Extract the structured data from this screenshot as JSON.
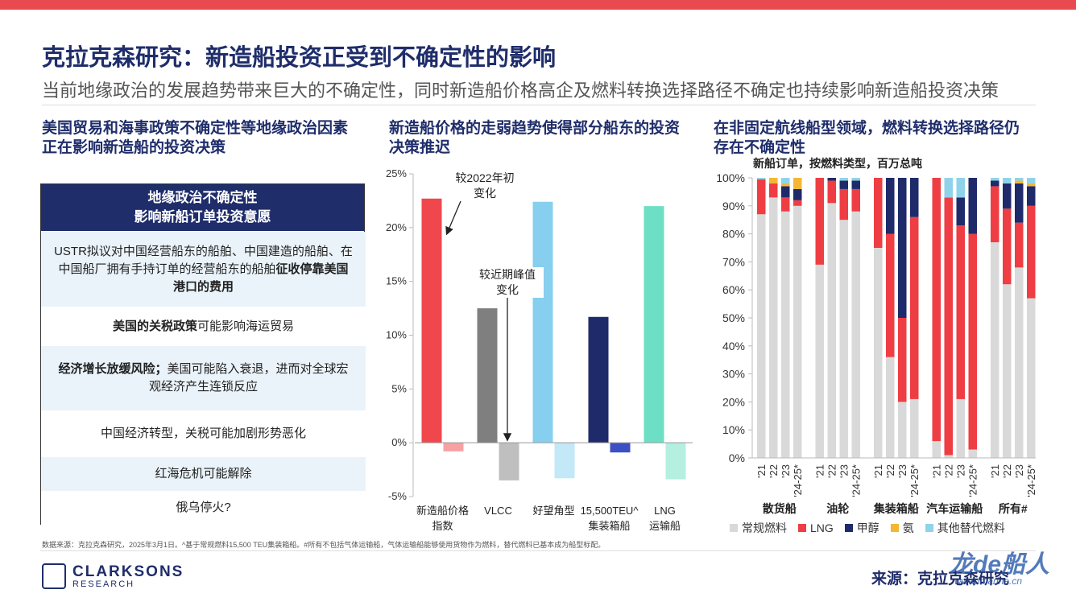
{
  "header": {
    "title": "克拉克森研究：新造船投资正受到不确定性的影响",
    "subtitle": "当前地缘政治的发展趋势带来巨大的不确定性，同时新造船价格高企及燃料转换选择路径不确定也持续影响新造船投资决策"
  },
  "left_panel": {
    "heading": "美国贸易和海事政策不确定性等地缘政治因素正在影响新造船的投资决策",
    "table": {
      "header_lines": [
        "地缘政治不确定性",
        "影响新船订单投资意愿"
      ],
      "rows": [
        {
          "parts": [
            "USTR拟议对中国经营船东的船舶、中国建造的船舶、在中国船厂拥有手持订单的经营船东的船舶",
            "征收停靠美国港口的费用"
          ],
          "bold": [
            false,
            true
          ]
        },
        {
          "parts": [
            "美国的关税政策",
            "可能影响海运贸易"
          ],
          "bold": [
            true,
            false
          ]
        },
        {
          "parts": [
            "经济增长放缓风险；",
            "美国可能陷入衰退，进而对全球宏观经济产生连锁反应"
          ],
          "bold": [
            true,
            false
          ]
        },
        {
          "parts": [
            "中国经济转型，关税可能加剧形势恶化"
          ],
          "bold": [
            false
          ]
        },
        {
          "parts": [
            "红海危机可能解除"
          ],
          "bold": [
            false
          ]
        },
        {
          "parts": [
            "俄乌停火?"
          ],
          "bold": [
            false
          ]
        }
      ]
    }
  },
  "chart_data": [
    {
      "type": "bar",
      "heading": "新造船价格的走弱趋势使得部分船东的投资决策推迟",
      "categories": [
        "新造船价格\n指数",
        "VLCC",
        "好望角型",
        "15,500TEU^\n集装箱船",
        "LNG\n运输船"
      ],
      "series": [
        {
          "name": "较2022年初\n变化",
          "colors": [
            "#f0474c",
            "#7f7f7f",
            "#87cfee",
            "#1f2a6b",
            "#6ddfc4"
          ],
          "values": [
            22.7,
            12.5,
            22.4,
            11.7,
            22.0
          ]
        },
        {
          "name": "较近期峰值\n变化",
          "colors": [
            "#f6a1a3",
            "#bfbfbf",
            "#c3e8f7",
            "#3c4fc4",
            "#b4efe0"
          ],
          "values": [
            -0.8,
            -3.5,
            -3.3,
            -0.9,
            -3.4
          ]
        }
      ],
      "ylim": [
        -5,
        25
      ],
      "yticks": [
        {
          "value": -5,
          "label": "-5%"
        },
        {
          "value": 0,
          "label": "0%"
        },
        {
          "value": 5,
          "label": "5%"
        },
        {
          "value": 10,
          "label": "10%"
        },
        {
          "value": 15,
          "label": "15%"
        },
        {
          "value": 20,
          "label": "20%"
        },
        {
          "value": 25,
          "label": "25%"
        }
      ]
    },
    {
      "type": "stacked_bar",
      "heading": "在非固定航线船型领域，燃料转换选择路径仍存在不确定性",
      "title": "新船订单，按燃料类型，百万总吨",
      "groups": [
        "散货船",
        "油轮",
        "集装箱船",
        "汽车运输船",
        "所有#"
      ],
      "categories": [
        "'21",
        "'22",
        "'23",
        "'24-25*",
        "'21",
        "'22",
        "'23",
        "'24-25*",
        "'21",
        "'22",
        "'23",
        "'24-25*",
        "'21",
        "'22",
        "'23",
        "'24-25*",
        "'21",
        "'22",
        "'23",
        "'24-25*"
      ],
      "series": [
        {
          "name": "常规燃料",
          "color": "#d9d9d9",
          "values": [
            87,
            93,
            88,
            90,
            69,
            91,
            85,
            88,
            75,
            36,
            20,
            21,
            6,
            1,
            21,
            3,
            77,
            62,
            68,
            57
          ]
        },
        {
          "name": "LNG",
          "color": "#ee3e44",
          "values": [
            12.5,
            5,
            5,
            2,
            31,
            8,
            11,
            8,
            25,
            44,
            30,
            65,
            94,
            92,
            62,
            77,
            20,
            27,
            16,
            33
          ]
        },
        {
          "name": "甲醇",
          "color": "#1f2a6b",
          "values": [
            0,
            0,
            4,
            4,
            0,
            1,
            3,
            3,
            0,
            20,
            50,
            14,
            0,
            0,
            10,
            20,
            2,
            9,
            14,
            7
          ]
        },
        {
          "name": "氨",
          "color": "#f5b731",
          "values": [
            0,
            2,
            1,
            4,
            0,
            0,
            0,
            0,
            0,
            0,
            0,
            0,
            0,
            0,
            0,
            0,
            0,
            0,
            1,
            1
          ]
        },
        {
          "name": "其他替代燃料",
          "color": "#8fd3ea",
          "values": [
            0.5,
            0,
            2,
            0,
            0,
            0,
            1,
            1,
            0,
            0,
            0,
            0,
            0,
            7,
            7,
            0,
            1,
            2,
            1,
            2
          ]
        }
      ],
      "ylim": [
        0,
        100
      ],
      "yticks": [
        {
          "value": 0,
          "label": "0%"
        },
        {
          "value": 10,
          "label": "10%"
        },
        {
          "value": 20,
          "label": "20%"
        },
        {
          "value": 30,
          "label": "30%"
        },
        {
          "value": 40,
          "label": "40%"
        },
        {
          "value": 50,
          "label": "50%"
        },
        {
          "value": 60,
          "label": "60%"
        },
        {
          "value": 70,
          "label": "70%"
        },
        {
          "value": 80,
          "label": "80%"
        },
        {
          "value": 90,
          "label": "90%"
        },
        {
          "value": 100,
          "label": "100%"
        }
      ]
    }
  ],
  "footer": {
    "note": "数据来源：克拉克森研究，2025年3月1日。^基于常规燃料15,500 TEU集装箱船。#所有不包括气体运输船，气体运输船能够使用货物作为燃料，替代燃料已基本成为船型标配。",
    "logo": "CLARKSONS",
    "logo_sub": "RESEARCH",
    "source": "来源：克拉克森研究",
    "watermark": "龙de船人",
    "watermark_url": "www.imarine.cn"
  }
}
